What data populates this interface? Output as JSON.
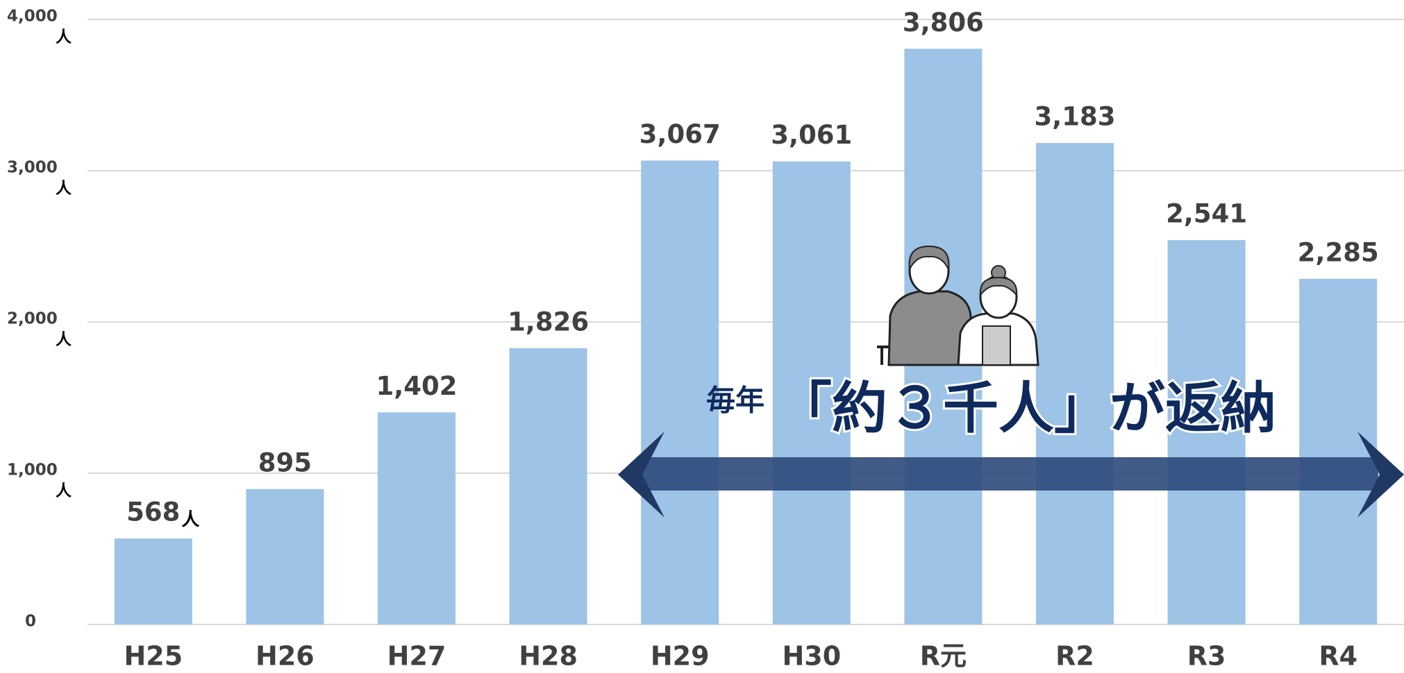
{
  "chart_data": {
    "type": "bar",
    "categories": [
      "H25",
      "H26",
      "H27",
      "H28",
      "H29",
      "H30",
      "R元",
      "R2",
      "R3",
      "R4"
    ],
    "values": [
      568,
      895,
      1402,
      1826,
      3067,
      3061,
      3806,
      3183,
      2541,
      2285
    ],
    "value_labels": [
      "568",
      "895",
      "1,402",
      "1,826",
      "3,067",
      "3,061",
      "3,806",
      "3,183",
      "2,541",
      "2,285"
    ],
    "value_unit": "人",
    "y_unit": "人",
    "color": "#9dc3e6",
    "ylim": [
      0,
      4000
    ],
    "yticks": [
      0,
      {
        "value": 1000,
        "label": "1,000"
      },
      {
        "value": 2000,
        "label": "2,000"
      },
      {
        "value": 3000,
        "label": "3,000"
      },
      {
        "value": 4000,
        "label": "4,000"
      }
    ],
    "grid": true,
    "annotation": {
      "prefix": "毎年",
      "text": "「約３千人」が返納"
    }
  }
}
